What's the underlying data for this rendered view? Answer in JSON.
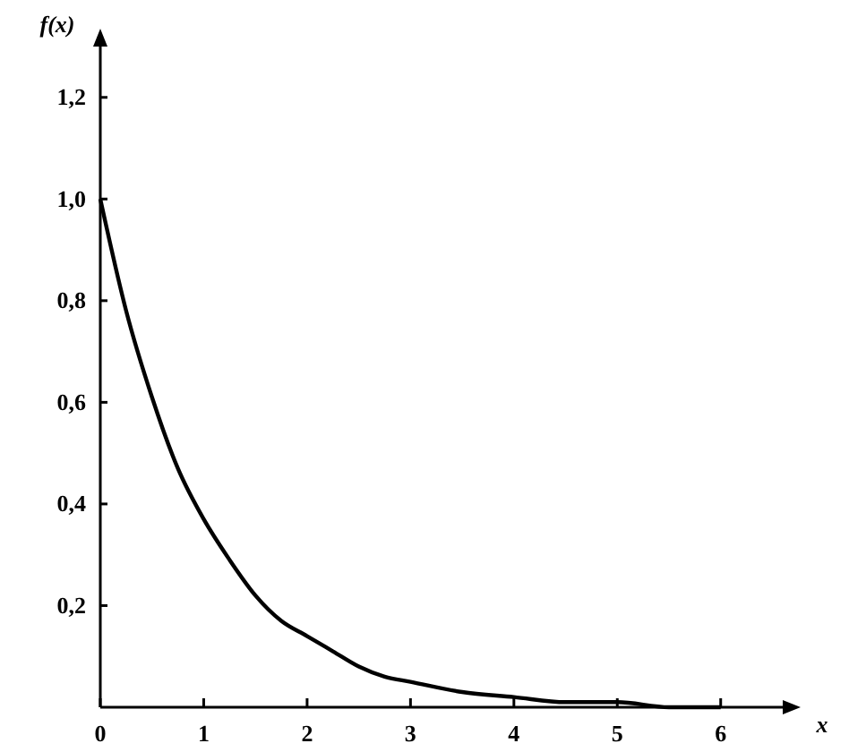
{
  "chart_data": {
    "type": "line",
    "xlabel": "x",
    "ylabel": "f(x)",
    "x": [
      0,
      0.25,
      0.5,
      0.75,
      1,
      1.25,
      1.5,
      1.75,
      2,
      2.25,
      2.5,
      2.75,
      3,
      3.5,
      4,
      4.5,
      5,
      5.5,
      6
    ],
    "values": [
      1,
      0.78,
      0.61,
      0.47,
      0.37,
      0.29,
      0.22,
      0.17,
      0.14,
      0.11,
      0.08,
      0.06,
      0.05,
      0.03,
      0.02,
      0.01,
      0.01,
      0,
      0
    ],
    "color": "#000000",
    "xlim": [
      0,
      6.6
    ],
    "ylim": [
      0,
      1.3
    ],
    "xticks": [
      0,
      1,
      2,
      3,
      4,
      5,
      6
    ],
    "yticks": [
      {
        "value": 0.2,
        "label": "0,2"
      },
      {
        "value": 0.4,
        "label": "0,4"
      },
      {
        "value": 0.6,
        "label": "0,6"
      },
      {
        "value": 0.8,
        "label": "0,8"
      },
      {
        "value": 1,
        "label": "1,0"
      },
      {
        "value": 1.2,
        "label": "1,2"
      }
    ],
    "grid": false,
    "marker": "none",
    "line_style": "solid"
  }
}
